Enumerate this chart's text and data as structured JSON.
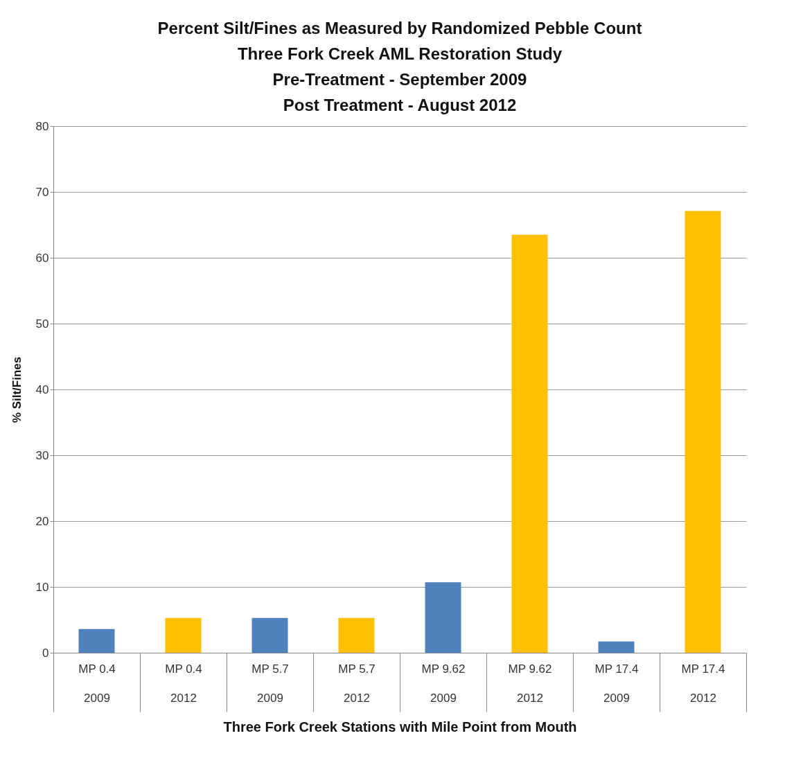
{
  "chart_data": {
    "type": "bar",
    "title": [
      "Percent Silt/Fines as Measured by Randomized Pebble Count",
      "Three Fork Creek AML Restoration Study",
      "Pre-Treatment - September 2009",
      "Post Treatment - August 2012"
    ],
    "xlabel": "Three Fork Creek Stations with Mile Point from Mouth",
    "ylabel": "% Silt/Fines",
    "categories": [
      "MP 0.4\n2009",
      "MP 0.4\n2012",
      "MP 5.7\n2009",
      "MP 5.7\n2012",
      "MP 9.62\n2009",
      "MP 9.62\n2012",
      "MP 17.4\n2009",
      "MP 17.4\n2012"
    ],
    "values": [
      3.6,
      5.3,
      5.3,
      5.3,
      10.7,
      63.5,
      1.7,
      67.1
    ],
    "colors": [
      "#4f81bd",
      "#ffc000",
      "#4f81bd",
      "#ffc000",
      "#4f81bd",
      "#ffc000",
      "#4f81bd",
      "#ffc000"
    ],
    "ylim": [
      0,
      80
    ],
    "yticks": [
      0,
      10,
      20,
      30,
      40,
      50,
      60,
      70,
      80
    ],
    "grid": "y"
  }
}
